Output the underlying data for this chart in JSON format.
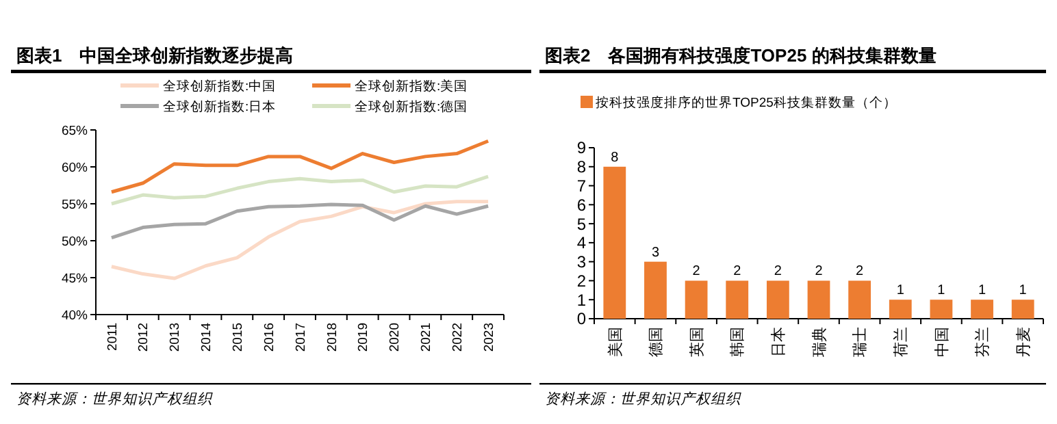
{
  "chart_data": [
    {
      "type": "line",
      "title": "图表1　中国全球创新指数逐步提高",
      "categories": [
        "2011",
        "2012",
        "2013",
        "2014",
        "2015",
        "2016",
        "2017",
        "2018",
        "2019",
        "2020",
        "2021",
        "2022",
        "2023"
      ],
      "series": [
        {
          "name": "全球创新指数:中国",
          "color": "#fbd9c6",
          "values": [
            46.5,
            45.5,
            44.9,
            46.6,
            47.7,
            50.5,
            52.6,
            53.3,
            54.6,
            53.8,
            55.0,
            55.3,
            55.3
          ]
        },
        {
          "name": "全球创新指数:美国",
          "color": "#ed7d31",
          "values": [
            56.6,
            57.8,
            60.4,
            60.2,
            60.2,
            61.4,
            61.4,
            59.8,
            61.8,
            60.6,
            61.4,
            61.8,
            63.5
          ]
        },
        {
          "name": "全球创新指数:日本",
          "color": "#a5a5a5",
          "values": [
            50.4,
            51.8,
            52.2,
            52.3,
            54.0,
            54.6,
            54.7,
            54.9,
            54.8,
            52.8,
            54.7,
            53.6,
            54.7
          ]
        },
        {
          "name": "全球创新指数:德国",
          "color": "#d6e4c4",
          "values": [
            55.0,
            56.2,
            55.8,
            56.0,
            57.1,
            58.0,
            58.4,
            58.0,
            58.2,
            56.6,
            57.4,
            57.3,
            58.7
          ]
        }
      ],
      "ylim": [
        40,
        65
      ],
      "yticks": [
        {
          "value": 40,
          "label": "40%"
        },
        {
          "value": 45,
          "label": "45%"
        },
        {
          "value": 50,
          "label": "50%"
        },
        {
          "value": 55,
          "label": "55%"
        },
        {
          "value": 60,
          "label": "60%"
        },
        {
          "value": 65,
          "label": "65%"
        }
      ],
      "legend": "top",
      "marker": "none",
      "grid": false,
      "annotations": [
        "资料来源：世界知识产权组织"
      ]
    },
    {
      "type": "bar",
      "title": "图表2　各国拥有科技强度TOP25 的科技集群数量",
      "categories": [
        "美国",
        "德国",
        "英国",
        "韩国",
        "日本",
        "瑞典",
        "瑞士",
        "荷兰",
        "中国",
        "芬兰",
        "丹麦"
      ],
      "series": [
        {
          "name": "按科技强度排序的世界TOP25科技集群数量（个）",
          "color": "#ed7d31",
          "values": [
            8,
            3,
            2,
            2,
            2,
            2,
            2,
            1,
            1,
            1,
            1
          ]
        }
      ],
      "ylim": [
        0,
        9
      ],
      "yticks": [
        0,
        1,
        2,
        3,
        4,
        5,
        6,
        7,
        8,
        9
      ],
      "legend": "top",
      "grid": false,
      "data_labels": true,
      "annotations": [
        "资料来源：世界知识产权组织"
      ]
    }
  ]
}
